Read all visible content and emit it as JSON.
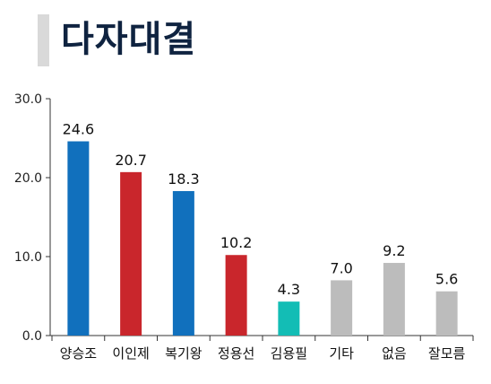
{
  "title": "다자대결",
  "chart_data": {
    "type": "bar",
    "title": "다자대결",
    "xlabel": "",
    "ylabel": "",
    "ylim": [
      0,
      30
    ],
    "yticks": [
      "0.0",
      "10.0",
      "20.0",
      "30.0"
    ],
    "grid": false,
    "categories": [
      "양승조",
      "이인제",
      "복기왕",
      "정용선",
      "김용필",
      "기타",
      "없음",
      "잘모름"
    ],
    "values": [
      24.6,
      20.7,
      18.3,
      10.2,
      4.3,
      7.0,
      9.2,
      5.6
    ],
    "value_labels": [
      "24.6",
      "20.7",
      "18.3",
      "10.2",
      "4.3",
      "7.0",
      "9.2",
      "5.6"
    ],
    "colors": [
      "#1170bd",
      "#c9262c",
      "#1170bd",
      "#c9262c",
      "#13bdb5",
      "#bcbcbc",
      "#bcbcbc",
      "#bcbcbc"
    ]
  }
}
